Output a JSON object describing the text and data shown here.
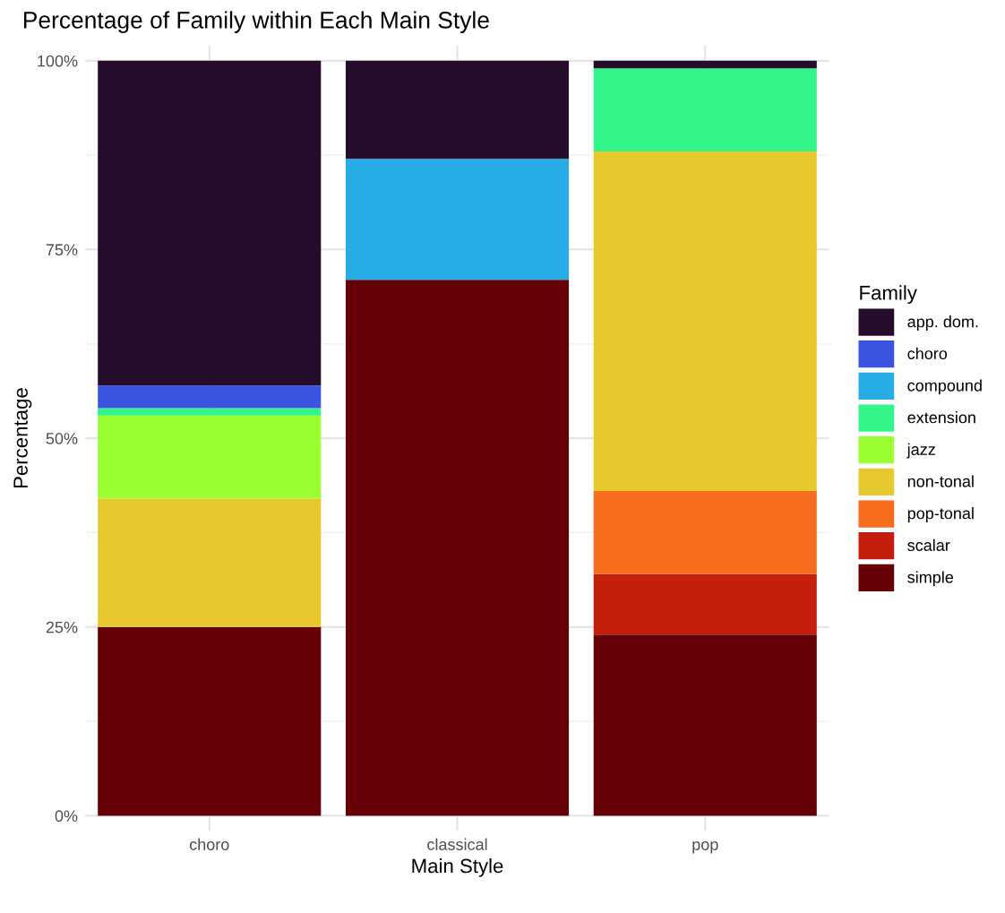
{
  "chart_data": {
    "type": "bar",
    "stacked": true,
    "title": "Percentage of Family within Each Main Style",
    "xlabel": "Main Style",
    "ylabel": "Percentage",
    "legend_title": "Family",
    "legend": "right",
    "grid": true,
    "categories": [
      "choro",
      "classical",
      "pop"
    ],
    "ylim": [
      -2,
      102
    ],
    "yticks": [
      {
        "value": 0,
        "label": "0%"
      },
      {
        "value": 25,
        "label": "25%"
      },
      {
        "value": 50,
        "label": "50%"
      },
      {
        "value": 75,
        "label": "75%"
      },
      {
        "value": 100,
        "label": "100%"
      }
    ],
    "series": [
      {
        "name": "simple",
        "color": "#650006",
        "values": [
          25,
          71,
          24
        ]
      },
      {
        "name": "scalar",
        "color": "#c41f0c",
        "values": [
          0,
          0,
          8
        ]
      },
      {
        "name": "pop-tonal",
        "color": "#f76d1e",
        "values": [
          0,
          0,
          11
        ]
      },
      {
        "name": "non-tonal",
        "color": "#e8c82f",
        "values": [
          17,
          0,
          45
        ]
      },
      {
        "name": "jazz",
        "color": "#9bff33",
        "values": [
          11,
          0,
          0
        ]
      },
      {
        "name": "extension",
        "color": "#33f58a",
        "values": [
          1,
          0,
          11
        ]
      },
      {
        "name": "compound",
        "color": "#28ace6",
        "values": [
          0,
          16,
          0
        ]
      },
      {
        "name": "choro",
        "color": "#3a54e0",
        "values": [
          3,
          0,
          0
        ]
      },
      {
        "name": "app. dom.",
        "color": "#240c2a",
        "values": [
          43,
          13,
          1
        ]
      }
    ]
  }
}
